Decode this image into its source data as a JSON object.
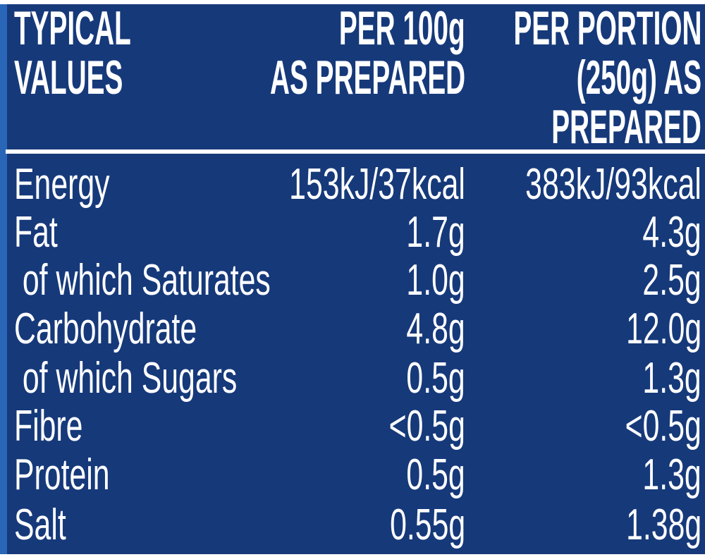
{
  "table": {
    "header": [
      [
        "TYPICAL",
        "VALUES"
      ],
      [
        "PER 100g",
        "AS PREPARED"
      ],
      [
        "PER PORTION",
        "(250g) AS",
        "PREPARED"
      ]
    ],
    "rows": [
      [
        "Energy",
        "153kJ/37kcal",
        "383kJ/93kcal"
      ],
      [
        "Fat",
        "1.7g",
        "4.3g"
      ],
      [
        " of which Saturates",
        "1.0g",
        "2.5g"
      ],
      [
        "Carbohydrate",
        "4.8g",
        "12.0g"
      ],
      [
        " of which Sugars",
        "0.5g",
        "1.3g"
      ],
      [
        "Fibre",
        "<0.5g",
        "<0.5g"
      ],
      [
        "Protein",
        "0.5g",
        "1.3g"
      ],
      [
        "Salt",
        "0.55g",
        "1.38g"
      ]
    ]
  }
}
